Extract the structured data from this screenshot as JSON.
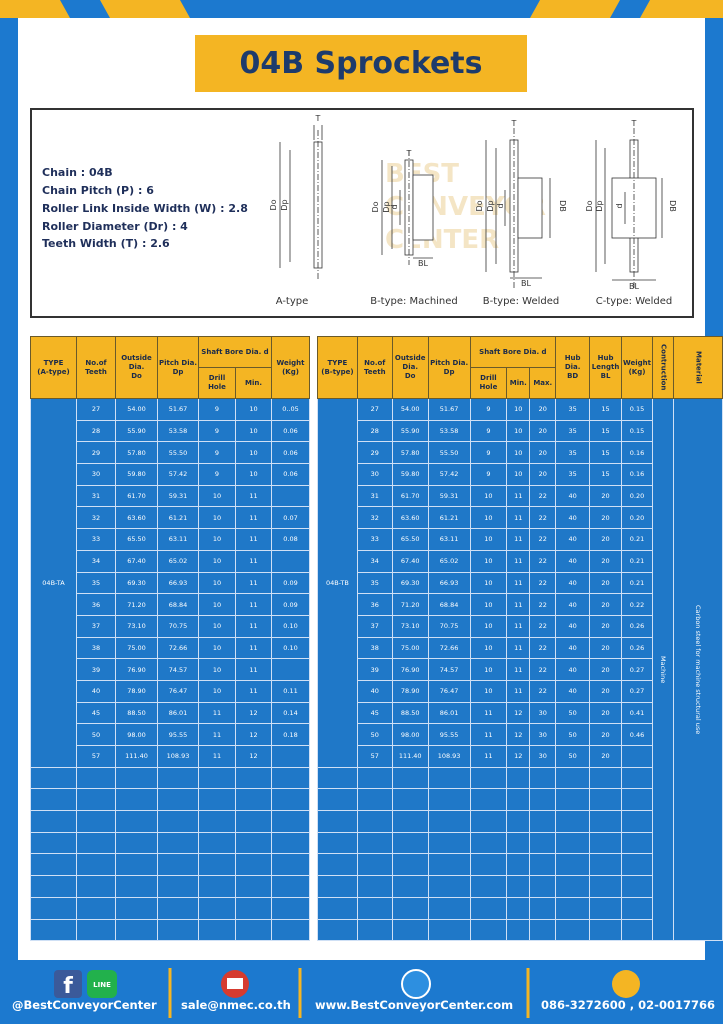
{
  "title": "04B Sprockets",
  "specs": [
    "Chain : 04B",
    "Chain Pitch (P) : 6",
    "Roller Link Inside Width (W) : 2.8",
    "Roller Diameter (Dr) : 4",
    "Teeth Width (T) : 2.6"
  ],
  "watermark": [
    "BEST",
    "CONVEYOR",
    "CENTER"
  ],
  "diagrams": [
    {
      "caption": "A-type",
      "labels": [
        "T",
        "Do",
        "Dp"
      ]
    },
    {
      "caption": "B-type: Machined",
      "labels": [
        "T",
        "Do",
        "Dp",
        "d",
        "BL"
      ]
    },
    {
      "caption": "B-type: Welded",
      "labels": [
        "T",
        "Do",
        "Dp",
        "d",
        "DB",
        "BL"
      ]
    },
    {
      "caption": "C-type: Welded",
      "labels": [
        "T",
        "Do",
        "Dp",
        "d",
        "DB",
        "BL"
      ]
    }
  ],
  "table_a": {
    "headers": [
      "TYPE\n(A-type)",
      "No.of\nTeeth",
      "Outside\nDia.\nDo",
      "Pitch Dia.\nDp",
      "Shaft Bore Dia. d",
      "Weight\n(Kg)",
      "Drill Hole",
      "Min."
    ],
    "type": "04B-TA",
    "rows": [
      [
        "27",
        "54.00",
        "51.67",
        "9",
        "10",
        "0..05"
      ],
      [
        "28",
        "55.90",
        "53.58",
        "9",
        "10",
        "0.06"
      ],
      [
        "29",
        "57.80",
        "55.50",
        "9",
        "10",
        "0.06"
      ],
      [
        "30",
        "59.80",
        "57.42",
        "9",
        "10",
        "0.06"
      ],
      [
        "31",
        "61.70",
        "59.31",
        "10",
        "11",
        null
      ],
      [
        "32",
        "63.60",
        "61.21",
        "10",
        "11",
        "0.07"
      ],
      [
        "33",
        "65.50",
        "63.11",
        "10",
        "11",
        "0.08"
      ],
      [
        "34",
        "67.40",
        "65.02",
        "10",
        "11",
        null
      ],
      [
        "35",
        "69.30",
        "66.93",
        "10",
        "11",
        "0.09"
      ],
      [
        "36",
        "71.20",
        "68.84",
        "10",
        "11",
        "0.09"
      ],
      [
        "37",
        "73.10",
        "70.75",
        "10",
        "11",
        "0.10"
      ],
      [
        "38",
        "75.00",
        "72.66",
        "10",
        "11",
        "0.10"
      ],
      [
        "39",
        "76.90",
        "74.57",
        "10",
        "11",
        null
      ],
      [
        "40",
        "78.90",
        "76.47",
        "10",
        "11",
        "0.11"
      ],
      [
        "45",
        "88.50",
        "86.01",
        "11",
        "12",
        "0.14"
      ],
      [
        "50",
        "98.00",
        "95.55",
        "11",
        "12",
        "0.18"
      ],
      [
        "57",
        "111.40",
        "108.93",
        "11",
        "12",
        null
      ]
    ]
  },
  "table_b": {
    "headers": [
      "TYPE\n(B-type)",
      "No.of\nTeeth",
      "Outside\nDia.\nDo",
      "Pitch Dia.\nDp",
      "Shaft Bore Dia. d",
      "Hub Dia.\nBD",
      "Hub\nLength\nBL",
      "Weight\n(Kg)",
      "Contruction",
      "Material",
      "Drill Hole",
      "Min.",
      "Max."
    ],
    "type": "04B-TB",
    "construction": "Machine",
    "material": "Carbon steel for machine structural use",
    "rows": [
      [
        "27",
        "54.00",
        "51.67",
        "9",
        "10",
        "20",
        "35",
        "15",
        "0.15"
      ],
      [
        "28",
        "55.90",
        "53.58",
        "9",
        "10",
        "20",
        "35",
        "15",
        "0.15"
      ],
      [
        "29",
        "57.80",
        "55.50",
        "9",
        "10",
        "20",
        "35",
        "15",
        "0.16"
      ],
      [
        "30",
        "59.80",
        "57.42",
        "9",
        "10",
        "20",
        "35",
        "15",
        "0.16"
      ],
      [
        "31",
        "61.70",
        "59.31",
        "10",
        "11",
        "22",
        "40",
        "20",
        "0.20"
      ],
      [
        "32",
        "63.60",
        "61.21",
        "10",
        "11",
        "22",
        "40",
        "20",
        "0.20"
      ],
      [
        "33",
        "65.50",
        "63.11",
        "10",
        "11",
        "22",
        "40",
        "20",
        "0.21"
      ],
      [
        "34",
        "67.40",
        "65.02",
        "10",
        "11",
        "22",
        "40",
        "20",
        "0.21"
      ],
      [
        "35",
        "69.30",
        "66.93",
        "10",
        "11",
        "22",
        "40",
        "20",
        "0.21"
      ],
      [
        "36",
        "71.20",
        "68.84",
        "10",
        "11",
        "22",
        "40",
        "20",
        "0.22"
      ],
      [
        "37",
        "73.10",
        "70.75",
        "10",
        "11",
        "22",
        "40",
        "20",
        "0.26"
      ],
      [
        "38",
        "75.00",
        "72.66",
        "10",
        "11",
        "22",
        "40",
        "20",
        "0.26"
      ],
      [
        "39",
        "76.90",
        "74.57",
        "10",
        "11",
        "22",
        "40",
        "20",
        "0.27"
      ],
      [
        "40",
        "78.90",
        "76.47",
        "10",
        "11",
        "22",
        "40",
        "20",
        "0.27"
      ],
      [
        "45",
        "88.50",
        "86.01",
        "11",
        "12",
        "30",
        "50",
        "20",
        "0.41"
      ],
      [
        "50",
        "98.00",
        "95.55",
        "11",
        "12",
        "30",
        "50",
        "20",
        "0.46"
      ],
      [
        "57",
        "111.40",
        "108.93",
        "11",
        "12",
        "30",
        "50",
        "20",
        null
      ]
    ]
  },
  "footer": {
    "line_icon": "LINE",
    "items": [
      "@BestConveyorCenter",
      "sale@nmec.co.th",
      "www.BestConveyorCenter.com",
      "086-3272600 , 02-0017766"
    ]
  }
}
